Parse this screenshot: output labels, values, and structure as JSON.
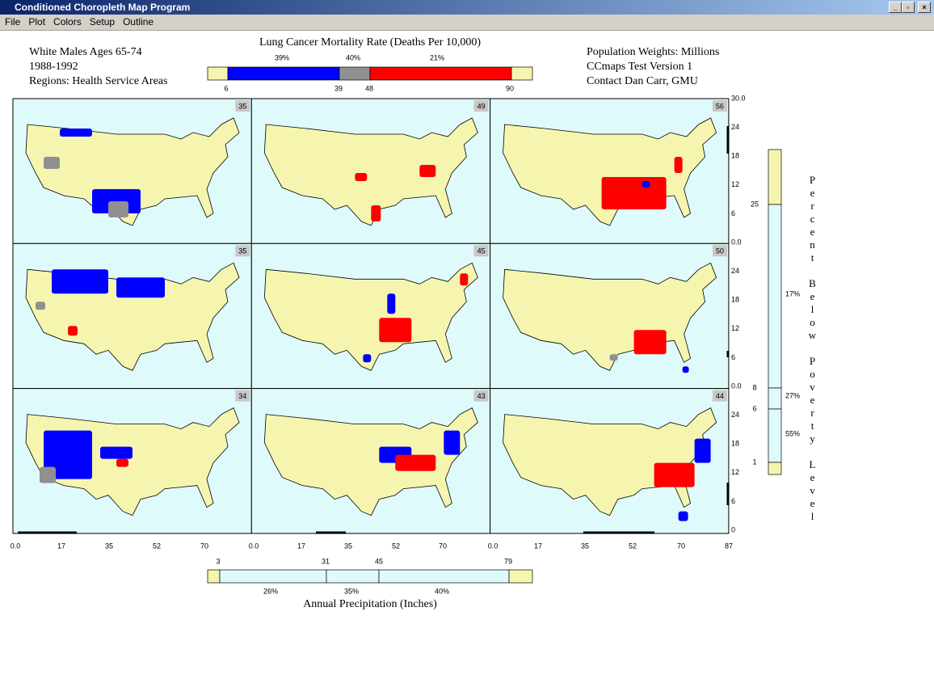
{
  "window": {
    "title": "Conditioned Choropleth Map Program",
    "menu": [
      "File",
      "Plot",
      "Colors",
      "Setup",
      "Outline"
    ]
  },
  "header": {
    "left": [
      "White Males Ages 65-74",
      "1988-1992",
      "Regions: Health Service Areas"
    ],
    "right": [
      "Population Weights: Millions",
      "CCmaps Test Version 1",
      "Contact Dan Carr, GMU"
    ]
  },
  "top_slider": {
    "title": "Lung Cancer Mortality Rate (Deaths Per 10,000)",
    "percents": [
      "39%",
      "40%",
      "21%"
    ],
    "ticks": [
      "6",
      "39",
      "48",
      "90"
    ]
  },
  "panels": [
    "35",
    "49",
    "56",
    "35",
    "45",
    "50",
    "34",
    "43",
    "44"
  ],
  "x_axis_labels": [
    "0.0",
    "17",
    "35",
    "52",
    "70",
    "0.0",
    "17",
    "35",
    "52",
    "70",
    "0.0",
    "17",
    "35",
    "52",
    "70",
    "87"
  ],
  "y_axis_labels": [
    "30.0",
    "24",
    "18",
    "12",
    "6",
    "0.0",
    "24",
    "18",
    "12",
    "6",
    "0.0",
    "24",
    "18",
    "12",
    "6",
    "0"
  ],
  "bottom_slider": {
    "title": "Annual Precipitation (Inches)",
    "ticks": [
      "3",
      "31",
      "45",
      "79"
    ],
    "percents": [
      "26%",
      "35%",
      "40%"
    ]
  },
  "right_slider": {
    "title": "Percent Below Poverty Level",
    "ticks": [
      "25",
      "8",
      "6",
      "1"
    ],
    "percents": [
      "17%",
      "27%",
      "55%"
    ]
  }
}
